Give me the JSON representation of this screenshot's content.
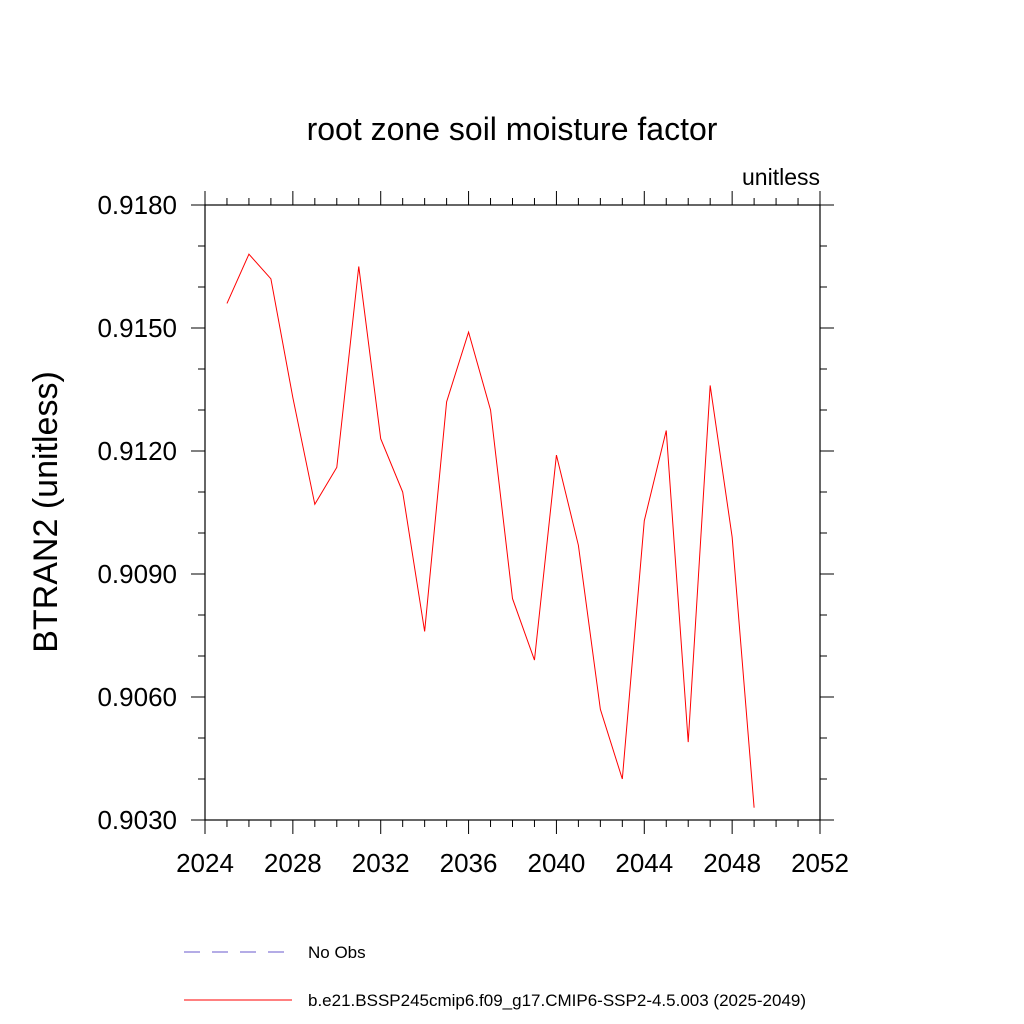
{
  "chart_data": {
    "type": "line",
    "title": "root zone soil moisture factor",
    "units_label": "unitless",
    "xlabel": "",
    "ylabel": "BTRAN2  (unitless)",
    "xlim": [
      2024,
      2052
    ],
    "ylim": [
      0.903,
      0.918
    ],
    "x_ticks": [
      2024,
      2028,
      2032,
      2036,
      2040,
      2044,
      2048,
      2052
    ],
    "x_minor_step": 1,
    "y_ticks": [
      0.903,
      0.906,
      0.909,
      0.912,
      0.915,
      0.918
    ],
    "y_tick_labels": [
      "0.9030",
      "0.9060",
      "0.9090",
      "0.9120",
      "0.9150",
      "0.9180"
    ],
    "y_minor_step": 0.001,
    "grid": false,
    "legend_position": "bottom",
    "series": [
      {
        "name": "No Obs",
        "color": "#6a5acd",
        "style": "dashed",
        "x": [],
        "values": []
      },
      {
        "name": "b.e21.BSSP245cmip6.f09_g17.CMIP6-SSP2-4.5.003 (2025-2049)",
        "color": "#ff0000",
        "style": "solid",
        "x": [
          2025,
          2026,
          2027,
          2028,
          2029,
          2030,
          2031,
          2032,
          2033,
          2034,
          2035,
          2036,
          2037,
          2038,
          2039,
          2040,
          2041,
          2042,
          2043,
          2044,
          2045,
          2046,
          2047,
          2048,
          2049
        ],
        "values": [
          0.9156,
          0.9168,
          0.9162,
          0.9133,
          0.9107,
          0.9116,
          0.9165,
          0.9123,
          0.911,
          0.9076,
          0.9132,
          0.9149,
          0.913,
          0.9084,
          0.9069,
          0.9119,
          0.9097,
          0.9057,
          0.904,
          0.9103,
          0.9125,
          0.9049,
          0.9136,
          0.9099,
          0.9033
        ]
      }
    ]
  }
}
